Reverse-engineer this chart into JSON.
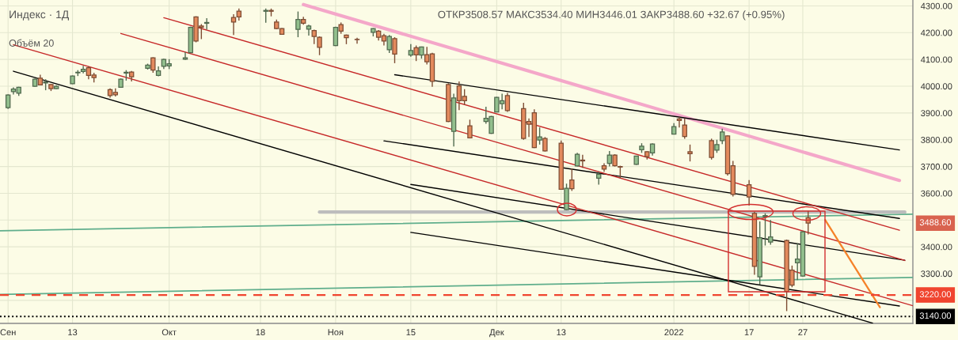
{
  "chart_data": {
    "type": "candlestick",
    "title": "Индекс · 1Д",
    "annotations": [
      "ОТКР3508.57 МАКС3534.40 МИН3446.01 ЗАКР3488.60 +32.67 (+0.95%)",
      "Объём 20",
      "3488.60"
    ],
    "x": [
      "2021-09-01",
      "2021-09-02",
      "2021-09-03",
      "2021-09-06",
      "2021-09-07",
      "2021-09-08",
      "2021-09-09",
      "2021-09-10",
      "2021-09-13",
      "2021-09-14",
      "2021-09-15",
      "2021-09-16",
      "2021-09-17",
      "2021-09-20",
      "2021-09-21",
      "2021-09-22",
      "2021-09-23",
      "2021-09-24",
      "2021-09-27",
      "2021-09-28",
      "2021-09-29",
      "2021-09-30",
      "2021-10-01",
      "2021-10-04",
      "2021-10-05",
      "2021-10-06",
      "2021-10-07",
      "2021-10-08",
      "2021-10-13",
      "2021-10-14",
      "2021-10-19",
      "2021-10-20",
      "2021-10-21",
      "2021-10-22",
      "2021-10-25",
      "2021-10-26",
      "2021-10-27",
      "2021-10-28",
      "2021-10-29",
      "2021-11-01",
      "2021-11-02",
      "2021-11-03",
      "2021-11-05",
      "2021-11-08",
      "2021-11-09",
      "2021-11-10",
      "2021-11-11",
      "2021-11-12",
      "2021-11-15",
      "2021-11-16",
      "2021-11-17",
      "2021-11-18",
      "2021-11-19",
      "2021-11-22",
      "2021-11-23",
      "2021-11-24",
      "2021-11-25",
      "2021-11-26",
      "2021-11-29",
      "2021-11-30",
      "2021-12-01",
      "2021-12-02",
      "2021-12-03",
      "2021-12-06",
      "2021-12-07",
      "2021-12-08",
      "2021-12-09",
      "2021-12-10",
      "2021-12-13",
      "2021-12-14",
      "2021-12-15",
      "2021-12-16",
      "2021-12-17",
      "2021-12-20",
      "2021-12-21",
      "2021-12-22",
      "2021-12-23",
      "2021-12-24",
      "2021-12-27",
      "2021-12-28",
      "2021-12-29",
      "2021-12-30",
      "2022-01-03",
      "2022-01-04",
      "2022-01-05",
      "2022-01-06",
      "2022-01-10",
      "2022-01-11",
      "2022-01-12",
      "2022-01-13",
      "2022-01-14",
      "2022-01-17",
      "2022-01-18",
      "2022-01-19",
      "2022-01-20",
      "2022-01-21",
      "2022-01-24",
      "2022-01-25",
      "2022-01-26",
      "2022-01-27",
      "2022-01-28"
    ],
    "ohlc": [
      [
        3920,
        3970,
        3915,
        3967
      ],
      [
        3980,
        3996,
        3969,
        3989
      ],
      [
        3974,
        3998,
        3964,
        3996
      ],
      [
        4000,
        4028,
        3998,
        4026
      ],
      [
        4030,
        4043,
        4004,
        4005
      ],
      [
        4012,
        4026,
        3985,
        4016
      ],
      [
        4006,
        4008,
        3982,
        3991
      ],
      [
        3991,
        4004,
        3989,
        4000
      ],
      [
        4009,
        4040,
        4008,
        4038
      ],
      [
        4050,
        4060,
        4038,
        4052
      ],
      [
        4055,
        4076,
        4048,
        4063
      ],
      [
        4069,
        4074,
        4026,
        4040
      ],
      [
        4042,
        4050,
        4014,
        4032
      ],
      [
        3987,
        3992,
        3957,
        3965
      ],
      [
        3977,
        3992,
        3962,
        3968
      ],
      [
        3996,
        4029,
        3996,
        4026
      ],
      [
        4049,
        4060,
        4021,
        4052
      ],
      [
        4053,
        4057,
        4018,
        4035
      ],
      [
        4067,
        4084,
        4062,
        4079
      ],
      [
        4106,
        4108,
        4050,
        4060
      ],
      [
        4040,
        4074,
        4037,
        4057
      ],
      [
        4074,
        4103,
        4064,
        4100
      ],
      [
        4076,
        4101,
        4064,
        4084
      ],
      [
        4101,
        4128,
        4098,
        4106
      ],
      [
        4125,
        4222,
        4125,
        4220
      ],
      [
        4259,
        4261,
        4164,
        4169
      ],
      [
        4225,
        4232,
        4176,
        4220
      ],
      [
        4235,
        4254,
        4212,
        4238
      ],
      [
        4257,
        4269,
        4191,
        4240
      ],
      [
        4280,
        4290,
        4245,
        4259
      ],
      [
        4280,
        4290,
        4237,
        4283
      ],
      [
        4283,
        4290,
        4261,
        4280
      ],
      [
        4240,
        4249,
        4213,
        4215
      ],
      [
        4215,
        4217,
        4192,
        4194
      ],
      [
        4212,
        4279,
        4183,
        4249
      ],
      [
        4249,
        4259,
        4230,
        4235
      ],
      [
        4213,
        4230,
        4189,
        4225
      ],
      [
        4208,
        4211,
        4157,
        4186
      ],
      [
        4183,
        4186,
        4116,
        4145
      ],
      [
        4152,
        4222,
        4150,
        4220
      ],
      [
        4230,
        4238,
        4196,
        4206
      ],
      [
        4191,
        4193,
        4157,
        4181
      ],
      [
        4175,
        4181,
        4159,
        4174
      ],
      [
        4201,
        4217,
        4186,
        4215
      ],
      [
        4206,
        4210,
        4171,
        4183
      ],
      [
        4189,
        4196,
        4152,
        4169
      ],
      [
        4136,
        4191,
        4124,
        4186
      ],
      [
        4178,
        4183,
        4086,
        4120
      ],
      [
        4116,
        4157,
        4110,
        4133
      ],
      [
        4144,
        4152,
        4094,
        4117
      ],
      [
        4116,
        4148,
        4103,
        4147
      ],
      [
        4118,
        4147,
        4081,
        4091
      ],
      [
        4121,
        4125,
        3998,
        4018
      ],
      [
        4006,
        4011,
        3866,
        3868
      ],
      [
        3831,
        3972,
        3775,
        3956
      ],
      [
        4001,
        4018,
        3911,
        3946
      ],
      [
        3962,
        3989,
        3930,
        3946
      ],
      [
        3852,
        3875,
        3805,
        3807
      ],
      [
        3868,
        3923,
        3860,
        3880
      ],
      [
        3824,
        3889,
        3822,
        3887
      ],
      [
        3904,
        3960,
        3903,
        3958
      ],
      [
        3935,
        3972,
        3914,
        3946
      ],
      [
        3965,
        3975,
        3904,
        3909
      ],
      [
        3916,
        3938,
        3800,
        3805
      ],
      [
        3868,
        3880,
        3810,
        3858
      ],
      [
        3901,
        3914,
        3769,
        3771
      ],
      [
        3799,
        3846,
        3782,
        3811
      ],
      [
        3805,
        3810,
        3756,
        3758
      ],
      [
        3787,
        3797,
        3613,
        3615
      ],
      [
        3539,
        3636,
        3537,
        3619
      ],
      [
        3650,
        3693,
        3609,
        3617
      ],
      [
        3702,
        3751,
        3700,
        3746
      ],
      [
        3724,
        3744,
        3695,
        3721
      ],
      [
        3656,
        3680,
        3632,
        3671
      ],
      [
        3703,
        3712,
        3680,
        3690
      ],
      [
        3712,
        3758,
        3700,
        3743
      ],
      [
        3743,
        3746,
        3700,
        3703
      ],
      [
        3700,
        3703,
        3656,
        3698
      ],
      [
        3708,
        3740,
        3706,
        3739
      ],
      [
        3763,
        3787,
        3751,
        3776
      ],
      [
        3755,
        3757,
        3726,
        3737
      ],
      [
        3751,
        3787,
        3741,
        3784
      ],
      [
        3821,
        3862,
        3820,
        3849
      ],
      [
        3878,
        3885,
        3846,
        3872
      ],
      [
        3855,
        3880,
        3804,
        3812
      ],
      [
        3755,
        3782,
        3719,
        3748
      ],
      [
        3797,
        3804,
        3726,
        3734
      ],
      [
        3761,
        3800,
        3751,
        3782
      ],
      [
        3797,
        3841,
        3784,
        3829
      ],
      [
        3814,
        3816,
        3666,
        3673
      ],
      [
        3703,
        3721,
        3588,
        3596
      ],
      [
        3632,
        3649,
        3554,
        3586
      ],
      [
        3525,
        3531,
        3296,
        3327
      ],
      [
        3288,
        3495,
        3259,
        3434
      ],
      [
        3513,
        3525,
        3405,
        3517
      ],
      [
        3418,
        3500,
        3408,
        3437
      ],
      [
        3424,
        3427,
        3160,
        3233
      ],
      [
        3313,
        3330,
        3249,
        3257
      ],
      [
        3340,
        3413,
        3276,
        3354
      ],
      [
        3291,
        3457,
        3288,
        3456
      ],
      [
        3508.57,
        3534.4,
        3446.01,
        3488.6
      ]
    ],
    "colors": [
      "#92bf8d",
      "#92bf8d",
      "#92bf8d",
      "#92bf8d",
      "#e38a5d",
      "#92bf8d",
      "#e38a5d",
      "#92bf8d",
      "#92bf8d",
      "#92bf8d",
      "#92bf8d",
      "#e38a5d",
      "#e38a5d",
      "#e38a5d",
      "#e38a5d",
      "#92bf8d",
      "#92bf8d",
      "#e38a5d",
      "#92bf8d",
      "#e38a5d",
      "#92bf8d",
      "#92bf8d",
      "#92bf8d",
      "#92bf8d",
      "#92bf8d",
      "#e38a5d",
      "#e38a5d",
      "#92bf8d",
      "#e38a5d",
      "#e38a5d",
      "#92bf8d",
      "#e38a5d",
      "#e38a5d",
      "#e38a5d",
      "#92bf8d",
      "#e38a5d",
      "#92bf8d",
      "#e38a5d",
      "#e38a5d",
      "#92bf8d",
      "#e38a5d",
      "#e38a5d",
      "#e38a5d",
      "#92bf8d",
      "#e38a5d",
      "#e38a5d",
      "#92bf8d",
      "#e38a5d",
      "#92bf8d",
      "#e38a5d",
      "#92bf8d",
      "#e38a5d",
      "#e38a5d",
      "#e38a5d",
      "#92bf8d",
      "#e38a5d",
      "#e38a5d",
      "#e38a5d",
      "#92bf8d",
      "#92bf8d",
      "#92bf8d",
      "#92bf8d",
      "#e38a5d",
      "#e38a5d",
      "#e38a5d",
      "#e38a5d",
      "#92bf8d",
      "#e38a5d",
      "#e38a5d",
      "#92bf8d",
      "#e38a5d",
      "#92bf8d",
      "#e38a5d",
      "#92bf8d",
      "#e38a5d",
      "#92bf8d",
      "#e38a5d",
      "#e38a5d",
      "#92bf8d",
      "#92bf8d",
      "#e38a5d",
      "#92bf8d",
      "#92bf8d",
      "#e38a5d",
      "#e38a5d",
      "#e38a5d",
      "#e38a5d",
      "#92bf8d",
      "#92bf8d",
      "#e38a5d",
      "#e38a5d",
      "#e38a5d",
      "#e38a5d",
      "#92bf8d",
      "#92bf8d",
      "#92bf8d",
      "#e38a5d",
      "#e38a5d",
      "#92bf8d",
      "#92bf8d",
      "#e38a5d"
    ],
    "series": [
      {
        "type": "line",
        "color": "#5fae8c",
        "x": [
          "2021-08-30T12:00",
          "2022-02-16T12:00"
        ],
        "values": [
          3460,
          3522
        ]
      },
      {
        "type": "line",
        "color": "#5fae8c",
        "x": [
          "2021-08-30T12:00",
          "2022-02-16T12:00"
        ],
        "values": [
          3222,
          3286
        ]
      },
      {
        "type": "line",
        "color": "#bdbdbd",
        "x": [
          "2021-10-29",
          "2022-02-15"
        ],
        "values": [
          3530,
          3530
        ]
      },
      {
        "type": "line",
        "color": "#f4a7c9",
        "x": [
          "2021-10-26",
          "2022-02-14"
        ],
        "values": [
          4305,
          3648
        ]
      },
      {
        "type": "line",
        "color": "#000000",
        "x": [
          "2021-11-12",
          "2022-02-14"
        ],
        "values": [
          4043,
          3762
        ]
      },
      {
        "type": "line",
        "color": "#000000",
        "x": [
          "2021-11-10",
          "2022-02-14"
        ],
        "values": [
          3796,
          3506
        ]
      },
      {
        "type": "line",
        "color": "#000000",
        "x": [
          "2021-11-15",
          "2022-02-15"
        ],
        "values": [
          3633,
          3350
        ]
      },
      {
        "type": "line",
        "color": "#000000",
        "x": [
          "2021-11-15",
          "2022-02-14"
        ],
        "values": [
          3454,
          3179
        ]
      },
      {
        "type": "line",
        "color": "#000000",
        "x": [
          "2021-09-02",
          "2022-02-09"
        ],
        "values": [
          4056,
          3115
        ]
      },
      {
        "type": "line",
        "color": "#c62828",
        "x": [
          "2021-09-30",
          "2022-02-14"
        ],
        "values": [
          4256,
          3462
        ]
      },
      {
        "type": "line",
        "color": "#c62828",
        "x": [
          "2021-09-22",
          "2022-02-15"
        ],
        "values": [
          4197,
          3349
        ]
      },
      {
        "type": "line",
        "color": "#c62828",
        "x": [
          "2021-09-02",
          "2022-02-16T12:00"
        ],
        "values": [
          4155,
          3180
        ]
      },
      {
        "type": "line",
        "color": "#f5822a",
        "x": [
          "2022-01-31T04:34",
          "2022-02-10T08:53"
        ],
        "values": [
          3500,
          3174
        ]
      }
    ],
    "ref_lines": [
      {
        "axis": "y",
        "value": 3220,
        "label": "3220.00",
        "color": "#f0452f",
        "line_style": "dashed"
      },
      {
        "axis": "y",
        "value": 3140,
        "label": "3140.00",
        "color": "#000000",
        "line_style": "dotted"
      }
    ],
    "xlim": [
      "2021-08-30T12:00",
      "2022-02-16T12:00"
    ],
    "xticks": [
      {
        "value": "2021-09-01",
        "label": "Сен"
      },
      {
        "value": "2021-09-13",
        "label": "13"
      },
      {
        "value": "2021-10-01",
        "label": "Окт"
      },
      {
        "value": "2021-10-18",
        "label": "18"
      },
      {
        "value": "2021-11-01",
        "label": "Ноя"
      },
      {
        "value": "2021-11-15",
        "label": "15"
      },
      {
        "value": "2021-12-01",
        "label": "Дек"
      },
      {
        "value": "2021-12-13",
        "label": "13"
      },
      {
        "value": "2022-01-03",
        "label": "2022"
      },
      {
        "value": "2022-01-17",
        "label": "17"
      },
      {
        "value": "2022-01-27",
        "label": "27"
      }
    ],
    "ylim": [
      3114,
      4322
    ],
    "yticks": [
      {
        "value": 3200,
        "label": null
      },
      {
        "value": 3300,
        "label": "3300.00"
      },
      {
        "value": 3400,
        "label": "3400.00"
      },
      {
        "value": 3500,
        "label": null
      },
      {
        "value": 3600,
        "label": "3600.00"
      },
      {
        "value": 3700,
        "label": "3700.00"
      },
      {
        "value": 3800,
        "label": "3800.00"
      },
      {
        "value": 3900,
        "label": "3900.00"
      },
      {
        "value": 4000,
        "label": "4000.00"
      },
      {
        "value": 4100,
        "label": "4100.00"
      },
      {
        "value": 4200,
        "label": "4200.00"
      },
      {
        "value": 4300,
        "label": "4300.00"
      }
    ],
    "grid": true
  }
}
